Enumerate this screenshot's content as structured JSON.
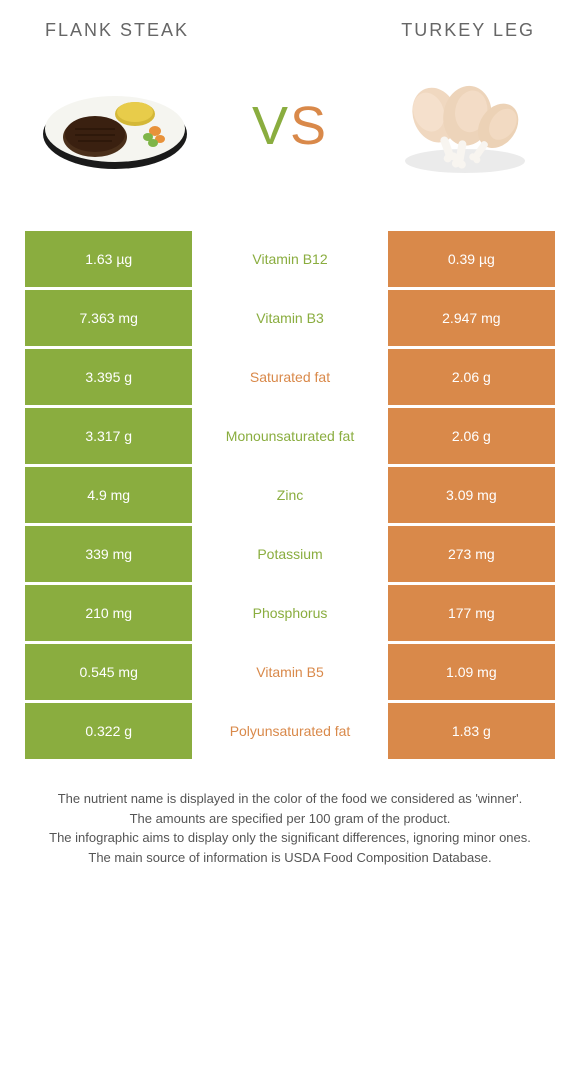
{
  "titles": {
    "left": "FLANK STEAK",
    "right": "TURKEY LEG"
  },
  "vs": {
    "v": "V",
    "s": "S"
  },
  "colors": {
    "left_box": "#8aad3f",
    "right_box": "#d9894a",
    "left_text": "#8aad3f",
    "right_text": "#d9894a"
  },
  "rows": [
    {
      "left": "1.63 µg",
      "mid": "Vitamin B12",
      "right": "0.39 µg",
      "win": "left"
    },
    {
      "left": "7.363 mg",
      "mid": "Vitamin B3",
      "right": "2.947 mg",
      "win": "left"
    },
    {
      "left": "3.395 g",
      "mid": "Saturated fat",
      "right": "2.06 g",
      "win": "right"
    },
    {
      "left": "3.317 g",
      "mid": "Monounsaturated fat",
      "right": "2.06 g",
      "win": "left"
    },
    {
      "left": "4.9 mg",
      "mid": "Zinc",
      "right": "3.09 mg",
      "win": "left"
    },
    {
      "left": "339 mg",
      "mid": "Potassium",
      "right": "273 mg",
      "win": "left"
    },
    {
      "left": "210 mg",
      "mid": "Phosphorus",
      "right": "177 mg",
      "win": "left"
    },
    {
      "left": "0.545 mg",
      "mid": "Vitamin B5",
      "right": "1.09 mg",
      "win": "right"
    },
    {
      "left": "0.322 g",
      "mid": "Polyunsaturated fat",
      "right": "1.83 g",
      "win": "right"
    }
  ],
  "footer": {
    "l1": "The nutrient name is displayed in the color of the food we considered as 'winner'.",
    "l2": "The amounts are specified per 100 gram of the product.",
    "l3": "The infographic aims to display only the significant differences, ignoring minor ones.",
    "l4": "The main source of information is USDA Food Composition Database."
  }
}
